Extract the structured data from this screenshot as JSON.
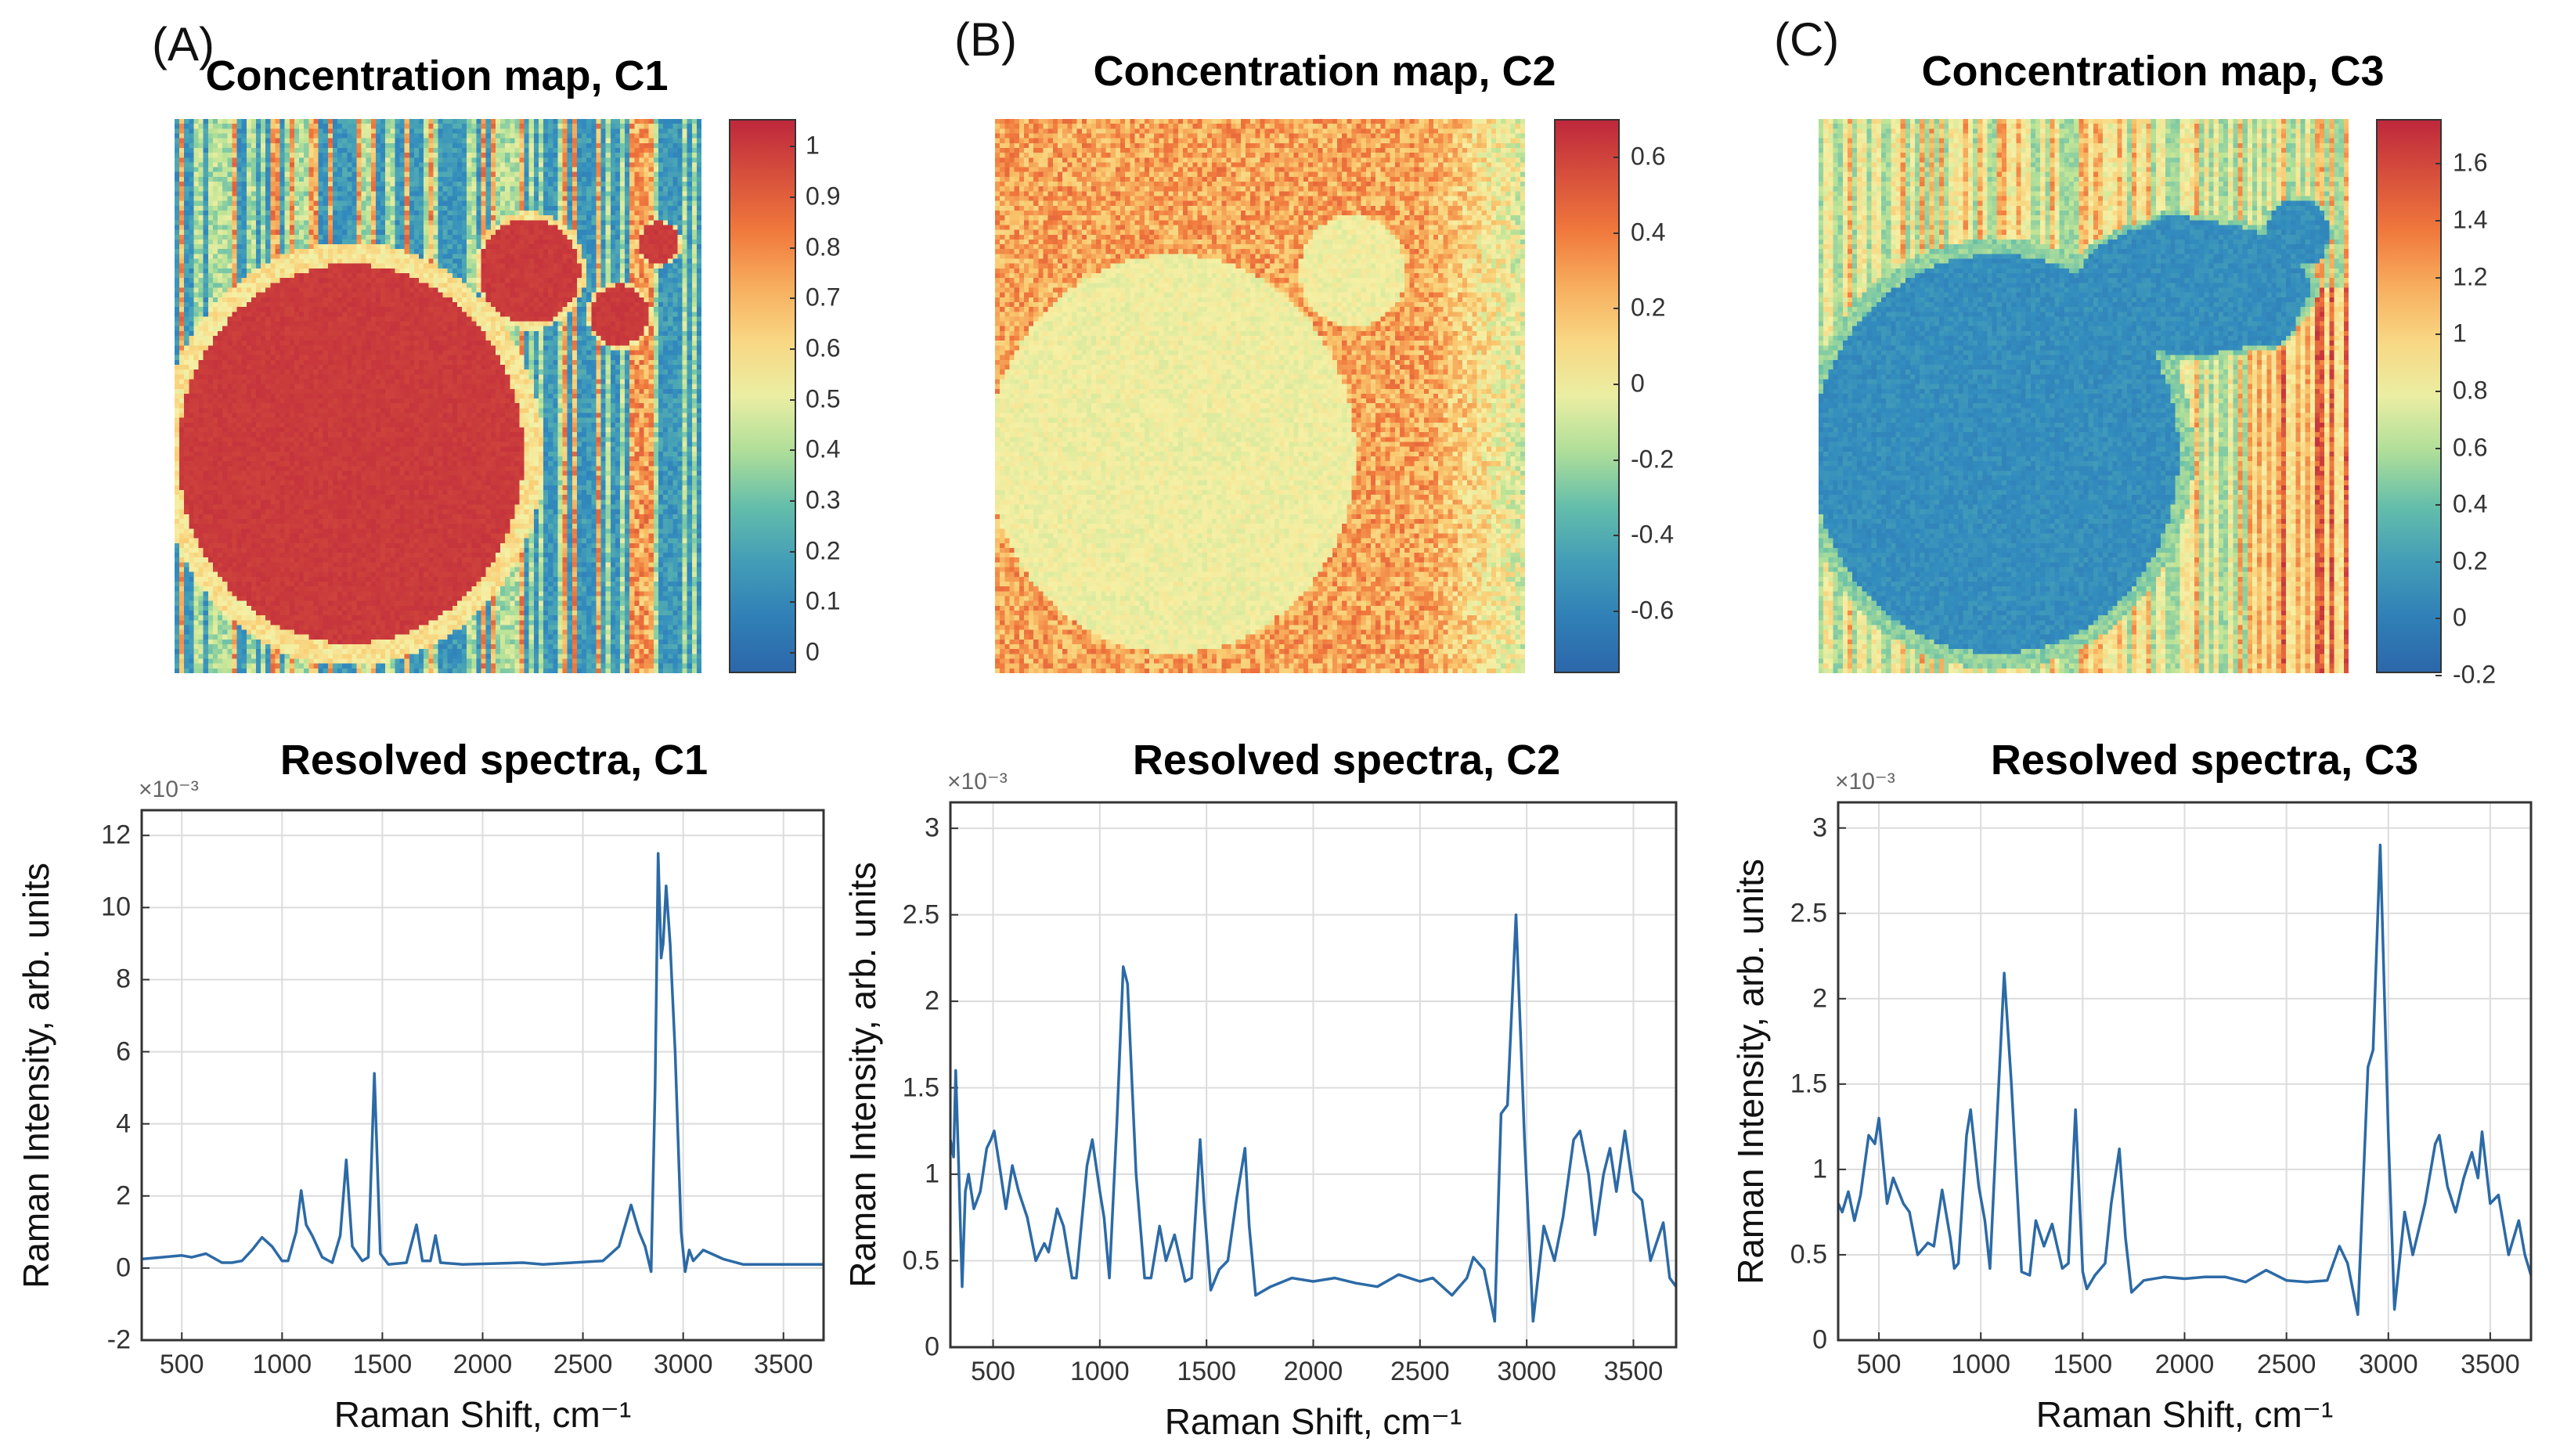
{
  "panels": [
    {
      "label": "(A)",
      "map_title": "Concentration map, C1",
      "spectra_title": "Resolved spectra, C1"
    },
    {
      "label": "(B)",
      "map_title": "Concentration map, C2",
      "spectra_title": "Resolved spectra, C2"
    },
    {
      "label": "(C)",
      "map_title": "Concentration map, C3",
      "spectra_title": "Resolved spectra, C3"
    }
  ],
  "colors": {
    "line": "#2c6aa6",
    "grid": "#dcdcdc",
    "axis": "#333333"
  },
  "chart_data": [
    {
      "type": "heatmap",
      "title": "Concentration map, C1",
      "clim": [
        -0.045,
        1.05
      ],
      "colorbar_ticks": [
        "0",
        "0.1",
        "0.2",
        "0.3",
        "0.4",
        "0.5",
        "0.6",
        "0.7",
        "0.8",
        "0.9",
        "1"
      ],
      "colorbar_values": [
        0,
        0.1,
        0.2,
        0.3,
        0.4,
        0.5,
        0.6,
        0.7,
        0.8,
        0.9,
        1
      ],
      "colormap": "spectral-reversed"
    },
    {
      "type": "heatmap",
      "title": "Concentration map, C2",
      "clim": [
        -0.77,
        0.695
      ],
      "colorbar_ticks": [
        "0.6",
        "0.4",
        "0.2",
        "0",
        "-0.2",
        "-0.4",
        "-0.6"
      ],
      "colorbar_values": [
        0.6,
        0.4,
        0.2,
        0,
        -0.2,
        -0.4,
        -0.6
      ],
      "colormap": "spectral-reversed"
    },
    {
      "type": "heatmap",
      "title": "Concentration map, C3",
      "clim": [
        -0.2,
        1.75
      ],
      "colorbar_ticks": [
        "1.6",
        "1.4",
        "1.2",
        "1",
        "0.8",
        "0.6",
        "0.4",
        "0.2",
        "0",
        "-0.2"
      ],
      "colorbar_values": [
        1.6,
        1.4,
        1.2,
        1,
        0.8,
        0.6,
        0.4,
        0.2,
        0,
        -0.2
      ],
      "colormap": "spectral-reversed"
    },
    {
      "type": "line",
      "title": "Resolved spectra, C1",
      "xlabel": "Raman Shift, cm⁻¹",
      "ylabel": "Raman Intensity, arb. units",
      "y_multiplier": "×10⁻³",
      "xlim": [
        300,
        3700
      ],
      "ylim": [
        -2,
        12.7
      ],
      "grid": true,
      "xticks": [
        500,
        1000,
        1500,
        2000,
        2500,
        3000,
        3500
      ],
      "yticks": [
        -2,
        0,
        2,
        4,
        6,
        8,
        10,
        12
      ],
      "x": [
        300,
        400,
        500,
        550,
        620,
        700,
        750,
        800,
        850,
        900,
        950,
        1000,
        1030,
        1070,
        1095,
        1120,
        1150,
        1200,
        1250,
        1290,
        1320,
        1350,
        1400,
        1430,
        1460,
        1490,
        1530,
        1620,
        1670,
        1700,
        1740,
        1765,
        1790,
        1900,
        2200,
        2300,
        2450,
        2600,
        2680,
        2740,
        2780,
        2810,
        2840,
        2860,
        2875,
        2890,
        2900,
        2915,
        2935,
        2960,
        2990,
        3010,
        3030,
        3050,
        3100,
        3200,
        3300,
        3500,
        3700
      ],
      "y": [
        0.25,
        0.3,
        0.35,
        0.3,
        0.4,
        0.15,
        0.15,
        0.2,
        0.5,
        0.85,
        0.6,
        0.2,
        0.2,
        1.0,
        2.15,
        1.2,
        0.9,
        0.3,
        0.15,
        0.9,
        3.0,
        0.6,
        0.2,
        0.3,
        5.4,
        0.4,
        0.1,
        0.15,
        1.2,
        0.2,
        0.2,
        0.9,
        0.15,
        0.1,
        0.15,
        0.1,
        0.15,
        0.2,
        0.6,
        1.75,
        1.0,
        0.6,
        -0.1,
        5.0,
        11.5,
        8.6,
        9.0,
        10.6,
        9.0,
        6.0,
        1.0,
        -0.1,
        0.5,
        0.2,
        0.5,
        0.25,
        0.1,
        0.1,
        0.1
      ]
    },
    {
      "type": "line",
      "title": "Resolved spectra, C2",
      "xlabel": "Raman Shift, cm⁻¹",
      "ylabel": "Raman Intensity, arb. units",
      "y_multiplier": "×10⁻³",
      "xlim": [
        300,
        3700
      ],
      "ylim": [
        0,
        3.15
      ],
      "grid": true,
      "xticks": [
        500,
        1000,
        1500,
        2000,
        2500,
        3000,
        3500
      ],
      "yticks": [
        0,
        0.5,
        1,
        1.5,
        2,
        2.5,
        3
      ],
      "x": [
        300,
        315,
        325,
        340,
        355,
        370,
        385,
        410,
        440,
        470,
        490,
        505,
        530,
        560,
        590,
        620,
        660,
        700,
        740,
        760,
        800,
        830,
        870,
        890,
        940,
        965,
        1000,
        1020,
        1045,
        1080,
        1110,
        1130,
        1170,
        1210,
        1240,
        1280,
        1310,
        1350,
        1400,
        1430,
        1470,
        1490,
        1520,
        1560,
        1600,
        1640,
        1680,
        1700,
        1730,
        1800,
        1900,
        2000,
        2100,
        2200,
        2300,
        2400,
        2500,
        2560,
        2650,
        2720,
        2750,
        2800,
        2850,
        2880,
        2910,
        2950,
        2990,
        3030,
        3080,
        3130,
        3170,
        3220,
        3250,
        3290,
        3320,
        3360,
        3390,
        3420,
        3460,
        3500,
        3540,
        3580,
        3640,
        3670,
        3700
      ],
      "y": [
        1.2,
        1.1,
        1.6,
        1.0,
        0.35,
        0.9,
        1.0,
        0.8,
        0.9,
        1.15,
        1.2,
        1.25,
        1.05,
        0.8,
        1.05,
        0.9,
        0.75,
        0.5,
        0.6,
        0.55,
        0.8,
        0.7,
        0.4,
        0.4,
        1.05,
        1.2,
        0.9,
        0.75,
        0.4,
        1.3,
        2.2,
        2.1,
        1.0,
        0.4,
        0.4,
        0.7,
        0.5,
        0.65,
        0.38,
        0.4,
        1.2,
        0.8,
        0.33,
        0.45,
        0.5,
        0.85,
        1.15,
        0.7,
        0.3,
        0.35,
        0.4,
        0.38,
        0.4,
        0.37,
        0.35,
        0.42,
        0.38,
        0.4,
        0.3,
        0.4,
        0.52,
        0.45,
        0.15,
        1.35,
        1.4,
        2.5,
        1.2,
        0.15,
        0.7,
        0.5,
        0.75,
        1.2,
        1.25,
        1.0,
        0.65,
        1.0,
        1.15,
        0.9,
        1.25,
        0.9,
        0.85,
        0.5,
        0.72,
        0.4,
        0.35
      ]
    },
    {
      "type": "line",
      "title": "Resolved spectra, C3",
      "xlabel": "Raman Shift, cm⁻¹",
      "ylabel": "Raman Intensity, arb. units",
      "y_multiplier": "×10⁻³",
      "xlim": [
        300,
        3700
      ],
      "ylim": [
        0,
        3.15
      ],
      "grid": true,
      "xticks": [
        500,
        1000,
        1500,
        2000,
        2500,
        3000,
        3500
      ],
      "yticks": [
        0,
        0.5,
        1,
        1.5,
        2,
        2.5,
        3
      ],
      "x": [
        300,
        320,
        350,
        380,
        410,
        450,
        480,
        500,
        540,
        570,
        620,
        650,
        690,
        740,
        770,
        810,
        850,
        870,
        890,
        930,
        950,
        990,
        1020,
        1045,
        1080,
        1115,
        1150,
        1200,
        1240,
        1270,
        1310,
        1350,
        1400,
        1430,
        1465,
        1500,
        1520,
        1560,
        1610,
        1640,
        1680,
        1710,
        1740,
        1800,
        1900,
        2000,
        2100,
        2200,
        2300,
        2400,
        2500,
        2600,
        2700,
        2760,
        2800,
        2850,
        2900,
        2925,
        2960,
        3000,
        3030,
        3080,
        3120,
        3180,
        3230,
        3250,
        3290,
        3330,
        3370,
        3410,
        3440,
        3460,
        3500,
        3540,
        3590,
        3640,
        3670,
        3700
      ],
      "y": [
        0.8,
        0.75,
        0.87,
        0.7,
        0.85,
        1.2,
        1.15,
        1.3,
        0.8,
        0.95,
        0.8,
        0.75,
        0.5,
        0.57,
        0.55,
        0.88,
        0.6,
        0.42,
        0.45,
        1.2,
        1.35,
        0.9,
        0.7,
        0.42,
        1.3,
        2.15,
        1.5,
        0.4,
        0.38,
        0.7,
        0.55,
        0.68,
        0.42,
        0.45,
        1.35,
        0.4,
        0.3,
        0.38,
        0.45,
        0.8,
        1.12,
        0.6,
        0.28,
        0.35,
        0.37,
        0.36,
        0.37,
        0.37,
        0.34,
        0.41,
        0.35,
        0.34,
        0.35,
        0.55,
        0.45,
        0.15,
        1.6,
        1.7,
        2.9,
        1.2,
        0.18,
        0.75,
        0.5,
        0.8,
        1.15,
        1.2,
        0.9,
        0.75,
        0.95,
        1.1,
        0.95,
        1.22,
        0.8,
        0.85,
        0.5,
        0.7,
        0.5,
        0.38
      ]
    }
  ]
}
